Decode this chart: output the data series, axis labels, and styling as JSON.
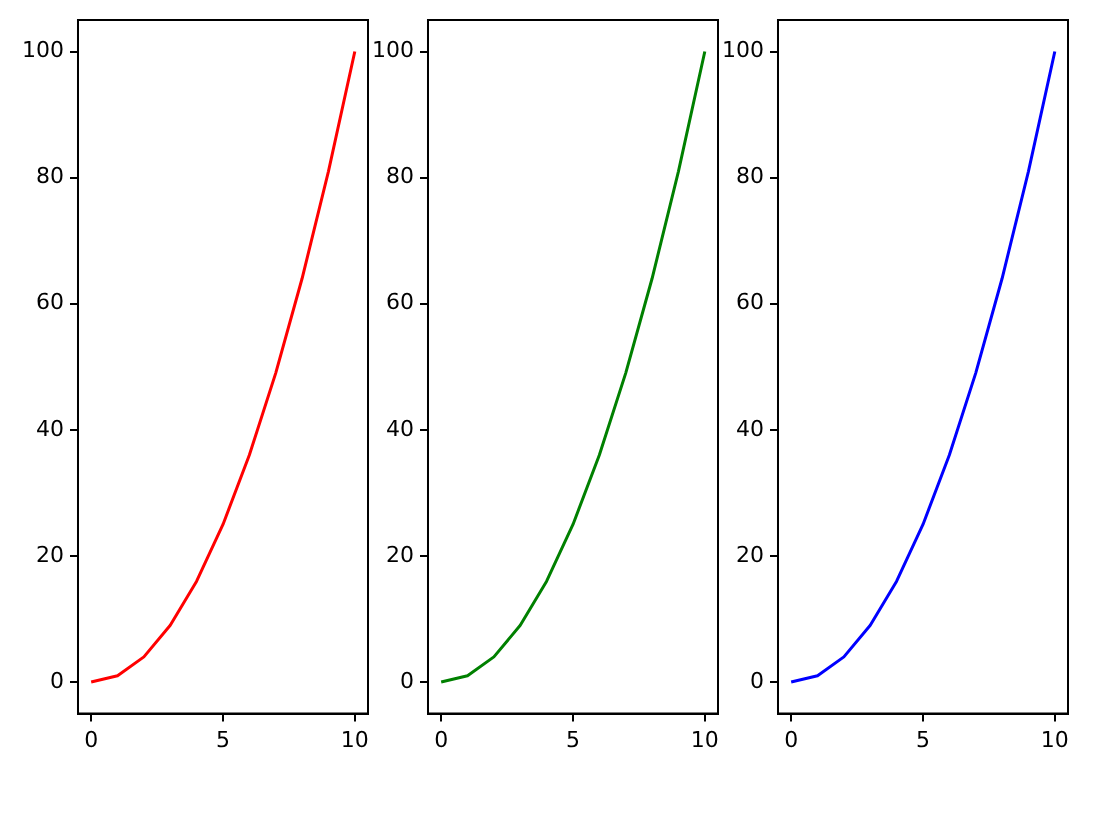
{
  "chart_data": [
    {
      "type": "line",
      "x": [
        0,
        1,
        2,
        3,
        4,
        5,
        6,
        7,
        8,
        9,
        10
      ],
      "series": [
        {
          "color": "#ff0000",
          "values": [
            0,
            1,
            4,
            9,
            16,
            25,
            36,
            49,
            64,
            81,
            100
          ]
        }
      ],
      "xlim": [
        -0.5,
        10.5
      ],
      "ylim": [
        -5,
        105
      ],
      "xticks": [
        0,
        5,
        10
      ],
      "yticks": [
        0,
        20,
        40,
        60,
        80,
        100
      ],
      "grid": false,
      "legend": false,
      "marker": "none"
    },
    {
      "type": "line",
      "x": [
        0,
        1,
        2,
        3,
        4,
        5,
        6,
        7,
        8,
        9,
        10
      ],
      "series": [
        {
          "color": "#008000",
          "values": [
            0,
            1,
            4,
            9,
            16,
            25,
            36,
            49,
            64,
            81,
            100
          ]
        }
      ],
      "xlim": [
        -0.5,
        10.5
      ],
      "ylim": [
        -5,
        105
      ],
      "xticks": [
        0,
        5,
        10
      ],
      "yticks": [
        0,
        20,
        40,
        60,
        80,
        100
      ],
      "grid": false,
      "legend": false,
      "marker": "none"
    },
    {
      "type": "line",
      "x": [
        0,
        1,
        2,
        3,
        4,
        5,
        6,
        7,
        8,
        9,
        10
      ],
      "series": [
        {
          "color": "#0000ff",
          "values": [
            0,
            1,
            4,
            9,
            16,
            25,
            36,
            49,
            64,
            81,
            100
          ]
        }
      ],
      "xlim": [
        -0.5,
        10.5
      ],
      "ylim": [
        -5,
        105
      ],
      "xticks": [
        0,
        5,
        10
      ],
      "yticks": [
        0,
        20,
        40,
        60,
        80,
        100
      ],
      "grid": false,
      "legend": false,
      "marker": "none"
    }
  ]
}
